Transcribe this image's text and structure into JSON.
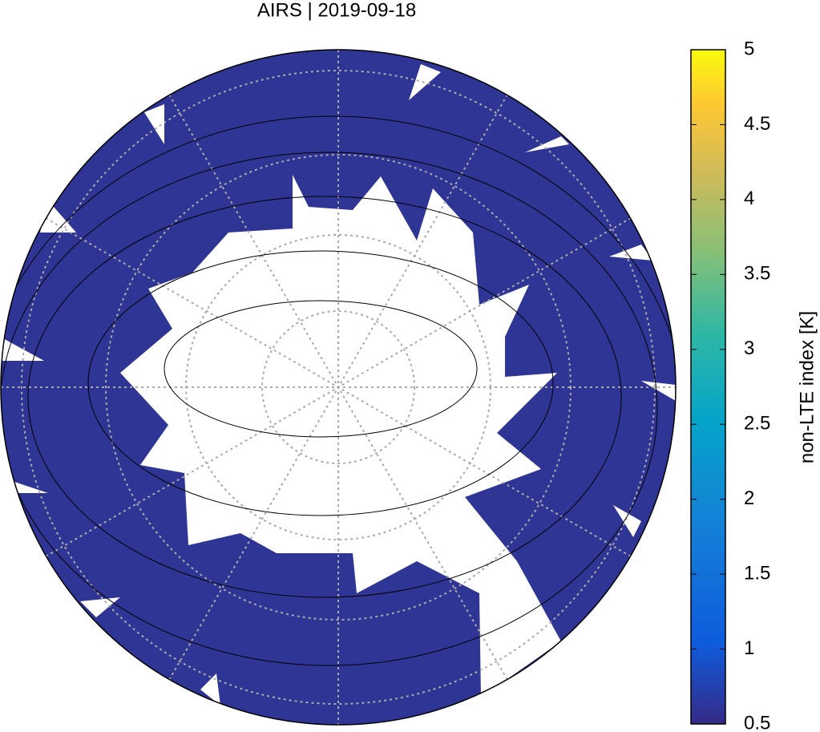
{
  "chart_data": {
    "type": "map",
    "title": "AIRS | 2019-09-18",
    "colorbar": {
      "label": "non-LTE index [K]",
      "lim": [
        0.5,
        5
      ],
      "ticks": [
        0.5,
        1,
        1.5,
        2,
        2.5,
        3,
        3.5,
        4,
        4.5,
        5
      ]
    }
  }
}
